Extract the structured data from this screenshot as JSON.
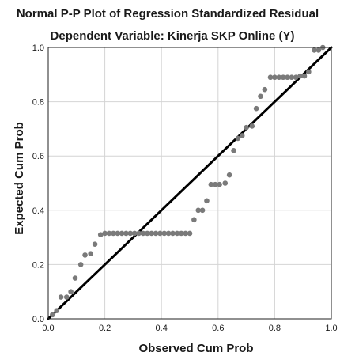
{
  "chart_data": {
    "type": "scatter",
    "title": "Normal P-P Plot of Regression Standardized Residual",
    "subtitle": "Dependent Variable: Kinerja SKP Online (Y)",
    "xlabel": "Observed Cum Prob",
    "ylabel": "Expected Cum Prob",
    "xlim": [
      0.0,
      1.0
    ],
    "ylim": [
      0.0,
      1.0
    ],
    "x_ticks": [
      "0.0",
      "0.2",
      "0.4",
      "0.6",
      "0.8",
      "1.0"
    ],
    "y_ticks": [
      "0.0",
      "0.2",
      "0.4",
      "0.6",
      "0.8",
      "1.0"
    ],
    "grid": true,
    "reference_line": {
      "from": [
        0,
        0
      ],
      "to": [
        1,
        1
      ],
      "color": "#000000"
    },
    "point_color": "#7a7a7a",
    "points": [
      [
        0.015,
        0.015
      ],
      [
        0.03,
        0.03
      ],
      [
        0.045,
        0.08
      ],
      [
        0.065,
        0.08
      ],
      [
        0.08,
        0.1
      ],
      [
        0.095,
        0.15
      ],
      [
        0.115,
        0.2
      ],
      [
        0.13,
        0.235
      ],
      [
        0.15,
        0.24
      ],
      [
        0.165,
        0.275
      ],
      [
        0.185,
        0.31
      ],
      [
        0.2,
        0.315
      ],
      [
        0.215,
        0.315
      ],
      [
        0.23,
        0.315
      ],
      [
        0.245,
        0.315
      ],
      [
        0.26,
        0.315
      ],
      [
        0.275,
        0.315
      ],
      [
        0.29,
        0.315
      ],
      [
        0.305,
        0.315
      ],
      [
        0.32,
        0.315
      ],
      [
        0.335,
        0.315
      ],
      [
        0.35,
        0.315
      ],
      [
        0.365,
        0.315
      ],
      [
        0.38,
        0.315
      ],
      [
        0.395,
        0.315
      ],
      [
        0.41,
        0.315
      ],
      [
        0.425,
        0.315
      ],
      [
        0.44,
        0.315
      ],
      [
        0.455,
        0.315
      ],
      [
        0.47,
        0.315
      ],
      [
        0.485,
        0.315
      ],
      [
        0.5,
        0.315
      ],
      [
        0.515,
        0.365
      ],
      [
        0.53,
        0.4
      ],
      [
        0.545,
        0.4
      ],
      [
        0.56,
        0.435
      ],
      [
        0.575,
        0.495
      ],
      [
        0.59,
        0.495
      ],
      [
        0.605,
        0.495
      ],
      [
        0.625,
        0.5
      ],
      [
        0.64,
        0.53
      ],
      [
        0.655,
        0.62
      ],
      [
        0.67,
        0.665
      ],
      [
        0.685,
        0.675
      ],
      [
        0.7,
        0.705
      ],
      [
        0.72,
        0.71
      ],
      [
        0.735,
        0.775
      ],
      [
        0.75,
        0.82
      ],
      [
        0.765,
        0.845
      ],
      [
        0.785,
        0.89
      ],
      [
        0.8,
        0.89
      ],
      [
        0.815,
        0.89
      ],
      [
        0.83,
        0.89
      ],
      [
        0.845,
        0.89
      ],
      [
        0.86,
        0.89
      ],
      [
        0.875,
        0.89
      ],
      [
        0.89,
        0.895
      ],
      [
        0.905,
        0.895
      ],
      [
        0.92,
        0.91
      ],
      [
        0.94,
        0.99
      ],
      [
        0.955,
        0.99
      ],
      [
        0.97,
        1.0
      ]
    ]
  }
}
